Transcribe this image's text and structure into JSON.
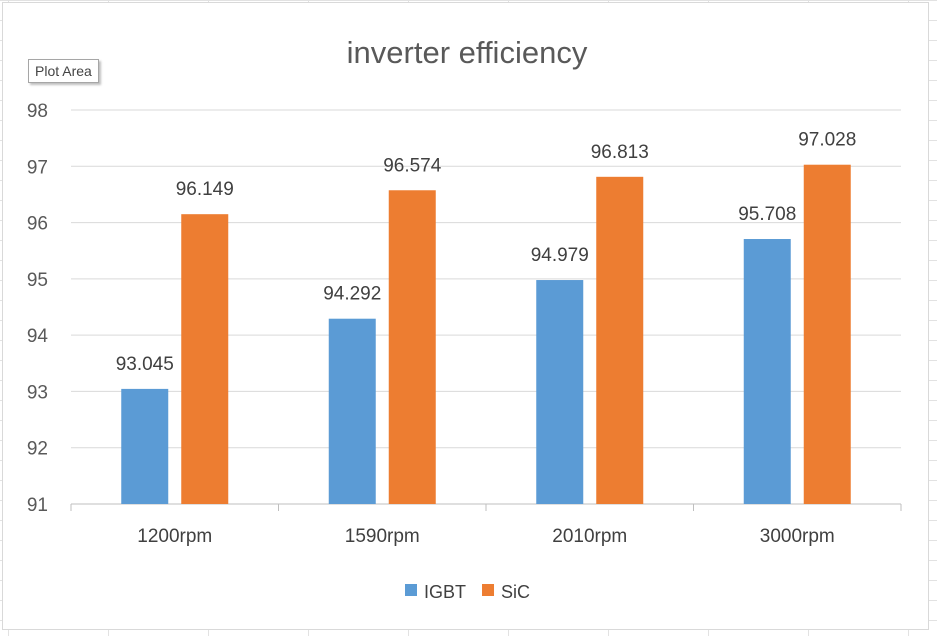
{
  "tooltip": "Plot Area",
  "chart_data": {
    "type": "bar",
    "title": "inverter efficiency",
    "categories": [
      "1200rpm",
      "1590rpm",
      "2010rpm",
      "3000rpm"
    ],
    "series": [
      {
        "name": "IGBT",
        "color": "#5b9bd5",
        "values": [
          93.045,
          94.292,
          94.979,
          95.708
        ]
      },
      {
        "name": "SiC",
        "color": "#ed7d31",
        "values": [
          96.149,
          96.574,
          96.813,
          97.028
        ]
      }
    ],
    "ylim": [
      91,
      98
    ],
    "yticks": [
      91,
      92,
      93,
      94,
      95,
      96,
      97,
      98
    ],
    "grid": true,
    "legend": "bottom",
    "data_labels": true
  }
}
